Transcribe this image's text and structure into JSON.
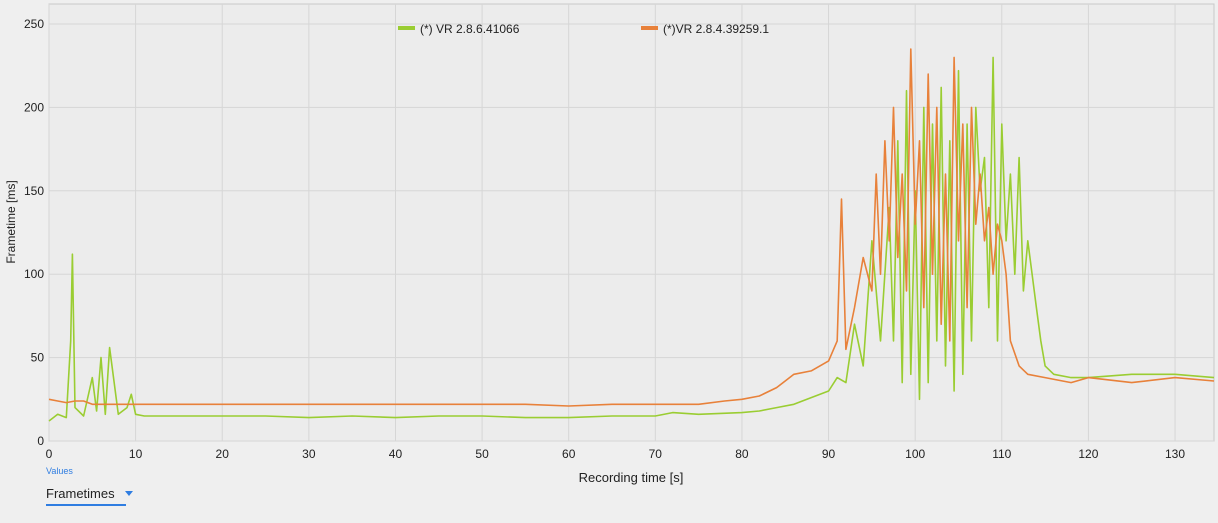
{
  "chart_data": {
    "type": "line",
    "xlabel": "Recording time [s]",
    "ylabel": "Frametime [ms]",
    "xlim": [
      0,
      134.5
    ],
    "ylim": [
      0,
      262
    ],
    "xticks": [
      0,
      10,
      20,
      30,
      40,
      50,
      60,
      70,
      80,
      90,
      100,
      110,
      120,
      130
    ],
    "yticks": [
      0,
      50,
      100,
      150,
      200,
      250
    ],
    "grid": true,
    "legend_position": "top-center",
    "series": [
      {
        "name": "(*) VR 2.8.6.41066",
        "color": "#9acd32",
        "x": [
          0,
          1,
          2,
          2.5,
          2.7,
          3,
          4,
          5,
          5.5,
          6,
          6.5,
          7,
          8,
          9,
          9.5,
          10,
          11,
          12,
          15,
          20,
          25,
          30,
          35,
          40,
          45,
          50,
          55,
          60,
          65,
          70,
          72,
          75,
          80,
          82,
          84,
          86,
          88,
          90,
          91,
          92,
          93,
          94,
          95,
          96,
          97,
          97.5,
          98,
          98.5,
          99,
          99.5,
          100,
          100.5,
          101,
          101.5,
          102,
          102.5,
          103,
          103.5,
          104,
          104.5,
          105,
          105.5,
          106,
          106.5,
          107,
          107.5,
          108,
          108.5,
          109,
          109.5,
          110,
          110.5,
          111,
          111.5,
          112,
          112.5,
          113,
          113.5,
          114,
          114.5,
          115,
          116,
          118,
          120,
          125,
          130,
          134.5
        ],
        "y": [
          12,
          16,
          14,
          60,
          112,
          20,
          15,
          38,
          18,
          50,
          16,
          56,
          16,
          20,
          28,
          16,
          15,
          15,
          15,
          15,
          15,
          14,
          15,
          14,
          15,
          15,
          14,
          14,
          15,
          15,
          17,
          16,
          17,
          18,
          20,
          22,
          26,
          30,
          38,
          35,
          70,
          45,
          120,
          60,
          140,
          60,
          180,
          35,
          210,
          40,
          150,
          25,
          200,
          35,
          190,
          60,
          212,
          45,
          180,
          30,
          222,
          40,
          190,
          60,
          200,
          150,
          170,
          80,
          230,
          60,
          190,
          120,
          160,
          100,
          170,
          90,
          120,
          100,
          80,
          60,
          45,
          40,
          38,
          38,
          40,
          40,
          38
        ]
      },
      {
        "name": "(*)VR 2.8.4.39259.1",
        "color": "#e8813a",
        "x": [
          0,
          1,
          2,
          3,
          4,
          5,
          6,
          8,
          10,
          12,
          15,
          20,
          25,
          30,
          35,
          40,
          45,
          50,
          55,
          60,
          65,
          70,
          75,
          78,
          80,
          82,
          84,
          85,
          86,
          88,
          89,
          90,
          91,
          91.5,
          92,
          93,
          94,
          95,
          95.5,
          96,
          96.5,
          97,
          97.5,
          98,
          98.5,
          99,
          99.5,
          100,
          100.5,
          101,
          101.5,
          102,
          102.5,
          103,
          103.5,
          104,
          104.5,
          105,
          105.5,
          106,
          106.5,
          107,
          107.5,
          108,
          108.5,
          109,
          109.5,
          110,
          110.5,
          111,
          112,
          113,
          115,
          118,
          120,
          125,
          130,
          134.5
        ],
        "y": [
          25,
          24,
          23,
          24,
          24,
          22,
          22,
          22,
          22,
          22,
          22,
          22,
          22,
          22,
          22,
          22,
          22,
          22,
          22,
          21,
          22,
          22,
          22,
          24,
          25,
          27,
          32,
          36,
          40,
          42,
          45,
          48,
          60,
          145,
          55,
          80,
          110,
          90,
          160,
          100,
          180,
          120,
          200,
          110,
          160,
          90,
          235,
          130,
          180,
          80,
          220,
          100,
          200,
          70,
          160,
          60,
          230,
          120,
          190,
          80,
          200,
          130,
          160,
          120,
          140,
          100,
          130,
          120,
          100,
          60,
          45,
          40,
          38,
          35,
          38,
          35,
          38,
          36
        ]
      }
    ]
  },
  "controls": {
    "caption": "Values",
    "selected": "Frametimes"
  }
}
